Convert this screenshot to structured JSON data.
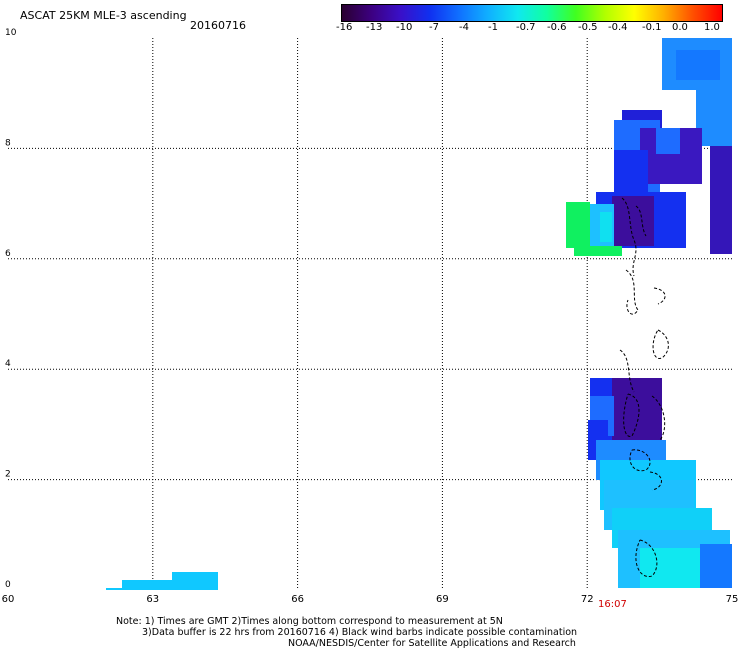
{
  "header": {
    "title": "ASCAT 25KM MLE-3 ascending",
    "date": "20160716"
  },
  "colorbar": {
    "labels": [
      "-16",
      "-13",
      "-10",
      "-7",
      "-4",
      "-1",
      "-0.7",
      "-0.6",
      "-0.5",
      "-0.4",
      "-0.1",
      "0.0",
      "1.0"
    ],
    "colors": [
      "#2a0030",
      "#3c0080",
      "#3a10c8",
      "#1030f0",
      "#1070ff",
      "#10b0ff",
      "#10e8f0",
      "#10ffa0",
      "#40ff20",
      "#b0ff00",
      "#ffff00",
      "#ffb000",
      "#ff5000",
      "#ff0000"
    ]
  },
  "axes": {
    "x_ticks": [
      "60",
      "63",
      "66",
      "69",
      "72",
      "75"
    ],
    "x_values": [
      60,
      63,
      66,
      69,
      72,
      75
    ],
    "y_ticks": [
      "0",
      "2",
      "4",
      "6",
      "8",
      "10"
    ],
    "y_values": [
      0,
      2,
      4,
      6,
      8,
      10
    ],
    "xlim": [
      60,
      75
    ],
    "ylim": [
      0,
      10
    ],
    "grid": true
  },
  "time_label": "16:07",
  "time_color": "#d00000",
  "notes": {
    "line1": "Note: 1) Times are GMT 2)Times along bottom correspond to measurement at 5N",
    "line2": "3)Data buffer is 22 hrs from 20160716 4) Black wind barbs indicate possible contamination",
    "line3": "NOAA/NESDIS/Center for Satellite Applications and Research"
  }
}
